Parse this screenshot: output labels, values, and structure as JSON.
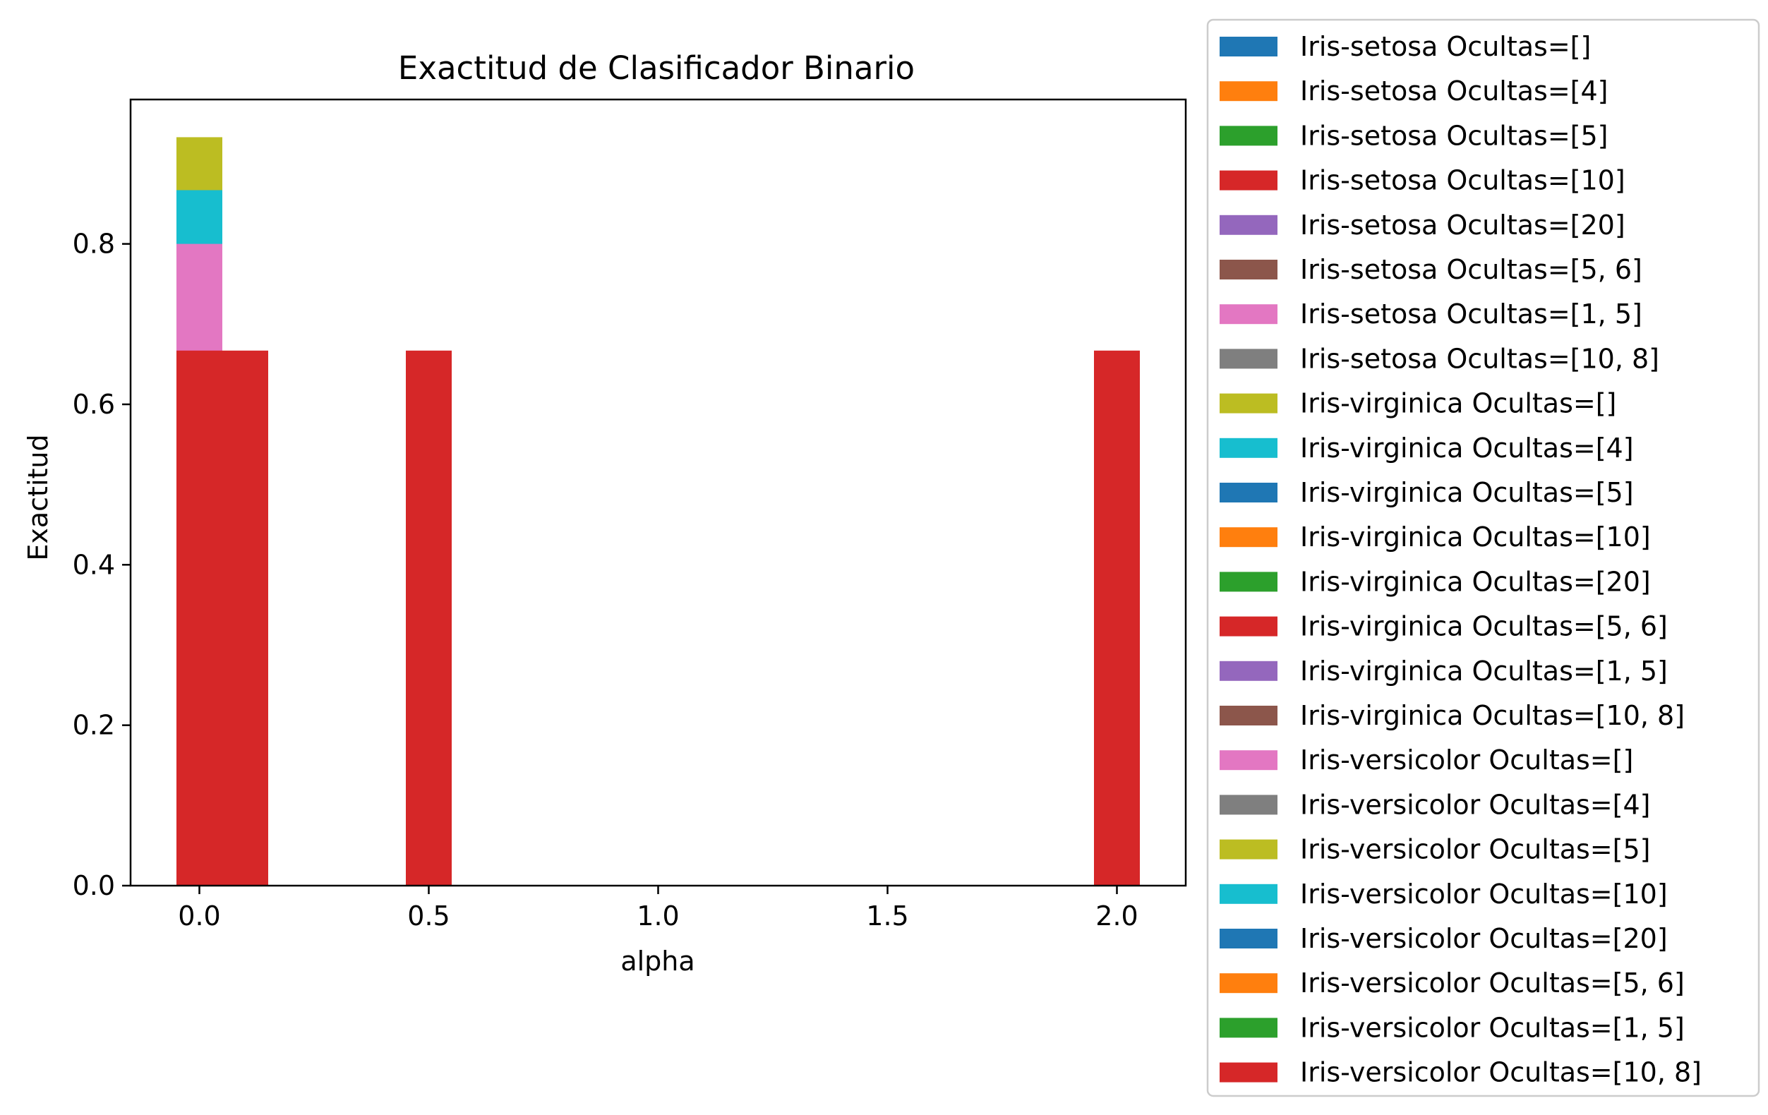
{
  "chart_data": {
    "type": "bar",
    "title": "Exactitud de Clasificador Binario",
    "xlabel": "alpha",
    "ylabel": "Exactitud",
    "xlim": [
      -0.15,
      2.15
    ],
    "ylim": [
      0,
      0.98
    ],
    "xticks": [
      "0.0",
      "0.5",
      "1.0",
      "1.5",
      "2.0"
    ],
    "xtick_values": [
      0.0,
      0.5,
      1.0,
      1.5,
      2.0
    ],
    "yticks": [
      "0.0",
      "0.2",
      "0.4",
      "0.6",
      "0.8"
    ],
    "ytick_values": [
      0.0,
      0.2,
      0.4,
      0.6,
      0.8
    ],
    "bar_width": 0.1,
    "grid": false,
    "legend_position": "outside right",
    "bars": [
      {
        "series": "Iris-setosa Ocultas=[]",
        "x": 0.0,
        "y": 0.8
      },
      {
        "series": "Iris-setosa Ocultas=[4]",
        "x": 0.0,
        "y": 0.8
      },
      {
        "series": "Iris-setosa Ocultas=[5]",
        "x": 0.0,
        "y": 0.8
      },
      {
        "series": "Iris-virginica Ocultas=[]",
        "x": 0.0,
        "y": 0.933
      },
      {
        "series": "Iris-virginica Ocultas=[4]",
        "x": 0.0,
        "y": 0.867
      },
      {
        "series": "Iris-versicolor Ocultas=[]",
        "x": 0.0,
        "y": 0.8
      },
      {
        "series": "Iris-versicolor Ocultas=[10, 8]",
        "x": 0.0,
        "y": 0.667
      },
      {
        "series": "Iris-versicolor Ocultas=[10, 8]",
        "x": 0.1,
        "y": 0.667
      },
      {
        "series": "Iris-versicolor Ocultas=[10, 8]",
        "x": 0.5,
        "y": 0.667
      },
      {
        "series": "Iris-versicolor Ocultas=[10, 8]",
        "x": 2.0,
        "y": 0.667
      }
    ],
    "legend": [
      {
        "name": "Iris-setosa Ocultas=[]",
        "color": "#1f77b4"
      },
      {
        "name": "Iris-setosa Ocultas=[4]",
        "color": "#ff7f0e"
      },
      {
        "name": "Iris-setosa Ocultas=[5]",
        "color": "#2ca02c"
      },
      {
        "name": "Iris-setosa Ocultas=[10]",
        "color": "#d62728"
      },
      {
        "name": "Iris-setosa Ocultas=[20]",
        "color": "#9467bd"
      },
      {
        "name": "Iris-setosa Ocultas=[5, 6]",
        "color": "#8c564b"
      },
      {
        "name": "Iris-setosa Ocultas=[1, 5]",
        "color": "#e377c2"
      },
      {
        "name": "Iris-setosa Ocultas=[10, 8]",
        "color": "#7f7f7f"
      },
      {
        "name": "Iris-virginica Ocultas=[]",
        "color": "#bcbd22"
      },
      {
        "name": "Iris-virginica Ocultas=[4]",
        "color": "#17becf"
      },
      {
        "name": "Iris-virginica Ocultas=[5]",
        "color": "#1f77b4"
      },
      {
        "name": "Iris-virginica Ocultas=[10]",
        "color": "#ff7f0e"
      },
      {
        "name": "Iris-virginica Ocultas=[20]",
        "color": "#2ca02c"
      },
      {
        "name": "Iris-virginica Ocultas=[5, 6]",
        "color": "#d62728"
      },
      {
        "name": "Iris-virginica Ocultas=[1, 5]",
        "color": "#9467bd"
      },
      {
        "name": "Iris-virginica Ocultas=[10, 8]",
        "color": "#8c564b"
      },
      {
        "name": "Iris-versicolor Ocultas=[]",
        "color": "#e377c2"
      },
      {
        "name": "Iris-versicolor Ocultas=[4]",
        "color": "#7f7f7f"
      },
      {
        "name": "Iris-versicolor Ocultas=[5]",
        "color": "#bcbd22"
      },
      {
        "name": "Iris-versicolor Ocultas=[10]",
        "color": "#17becf"
      },
      {
        "name": "Iris-versicolor Ocultas=[20]",
        "color": "#1f77b4"
      },
      {
        "name": "Iris-versicolor Ocultas=[5, 6]",
        "color": "#ff7f0e"
      },
      {
        "name": "Iris-versicolor Ocultas=[1, 5]",
        "color": "#2ca02c"
      },
      {
        "name": "Iris-versicolor Ocultas=[10, 8]",
        "color": "#d62728"
      }
    ]
  }
}
